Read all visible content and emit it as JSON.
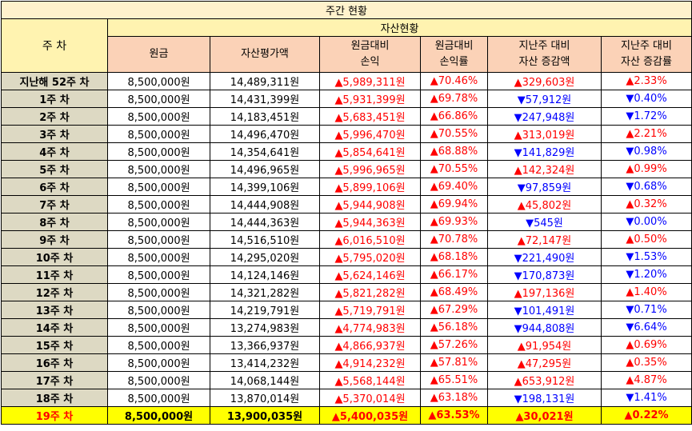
{
  "title": "주간 현황",
  "header": {
    "week_col": "주 차",
    "asset_group": "자산현황",
    "columns": [
      {
        "line1": "원금",
        "line2": ""
      },
      {
        "line1": "자산평가액",
        "line2": ""
      },
      {
        "line1": "원금대비",
        "line2": "손익"
      },
      {
        "line1": "원금대비",
        "line2": "손익률"
      },
      {
        "line1": "지난주 대비",
        "line2": "자산 증감액"
      },
      {
        "line1": "지난주 대비",
        "line2": "자산 증감률"
      }
    ]
  },
  "colors": {
    "up": "#ff0000",
    "down": "#0000ff",
    "highlight": "#ffff00"
  },
  "rows": [
    {
      "week": "지난해 52주 차",
      "principal": "8,500,000원",
      "valuation": "14,489,311원",
      "pl": "▲5,989,311원",
      "pl_rate": "▲70.46%",
      "wow_amount": "▲329,603원",
      "wow_amount_dir": "up",
      "wow_rate": "▲2.33%",
      "wow_rate_dir": "up"
    },
    {
      "week": "1주 차",
      "principal": "8,500,000원",
      "valuation": "14,431,399원",
      "pl": "▲5,931,399원",
      "pl_rate": "▲69.78%",
      "wow_amount": "▼57,912원",
      "wow_amount_dir": "down",
      "wow_rate": "▼0.40%",
      "wow_rate_dir": "down"
    },
    {
      "week": "2주 차",
      "principal": "8,500,000원",
      "valuation": "14,183,451원",
      "pl": "▲5,683,451원",
      "pl_rate": "▲66.86%",
      "wow_amount": "▼247,948원",
      "wow_amount_dir": "down",
      "wow_rate": "▼1.72%",
      "wow_rate_dir": "down"
    },
    {
      "week": "3주 차",
      "principal": "8,500,000원",
      "valuation": "14,496,470원",
      "pl": "▲5,996,470원",
      "pl_rate": "▲70.55%",
      "wow_amount": "▲313,019원",
      "wow_amount_dir": "up",
      "wow_rate": "▲2.21%",
      "wow_rate_dir": "up"
    },
    {
      "week": "4주 차",
      "principal": "8,500,000원",
      "valuation": "14,354,641원",
      "pl": "▲5,854,641원",
      "pl_rate": "▲68.88%",
      "wow_amount": "▼141,829원",
      "wow_amount_dir": "down",
      "wow_rate": "▼0.98%",
      "wow_rate_dir": "down"
    },
    {
      "week": "5주 차",
      "principal": "8,500,000원",
      "valuation": "14,496,965원",
      "pl": "▲5,996,965원",
      "pl_rate": "▲70.55%",
      "wow_amount": "▲142,324원",
      "wow_amount_dir": "up",
      "wow_rate": "▲0.99%",
      "wow_rate_dir": "up"
    },
    {
      "week": "6주 차",
      "principal": "8,500,000원",
      "valuation": "14,399,106원",
      "pl": "▲5,899,106원",
      "pl_rate": "▲69.40%",
      "wow_amount": "▼97,859원",
      "wow_amount_dir": "down",
      "wow_rate": "▼0.68%",
      "wow_rate_dir": "down"
    },
    {
      "week": "7주 차",
      "principal": "8,500,000원",
      "valuation": "14,444,908원",
      "pl": "▲5,944,908원",
      "pl_rate": "▲69.94%",
      "wow_amount": "▲45,802원",
      "wow_amount_dir": "up",
      "wow_rate": "▲0.32%",
      "wow_rate_dir": "up"
    },
    {
      "week": "8주 차",
      "principal": "8,500,000원",
      "valuation": "14,444,363원",
      "pl": "▲5,944,363원",
      "pl_rate": "▲69.93%",
      "wow_amount": "▼545원",
      "wow_amount_dir": "down",
      "wow_rate": "▼0.00%",
      "wow_rate_dir": "down"
    },
    {
      "week": "9주 차",
      "principal": "8,500,000원",
      "valuation": "14,516,510원",
      "pl": "▲6,016,510원",
      "pl_rate": "▲70.78%",
      "wow_amount": "▲72,147원",
      "wow_amount_dir": "up",
      "wow_rate": "▲0.50%",
      "wow_rate_dir": "up"
    },
    {
      "week": "10주 차",
      "principal": "8,500,000원",
      "valuation": "14,295,020원",
      "pl": "▲5,795,020원",
      "pl_rate": "▲68.18%",
      "wow_amount": "▼221,490원",
      "wow_amount_dir": "down",
      "wow_rate": "▼1.53%",
      "wow_rate_dir": "down"
    },
    {
      "week": "11주 차",
      "principal": "8,500,000원",
      "valuation": "14,124,146원",
      "pl": "▲5,624,146원",
      "pl_rate": "▲66.17%",
      "wow_amount": "▼170,873원",
      "wow_amount_dir": "down",
      "wow_rate": "▼1.20%",
      "wow_rate_dir": "down"
    },
    {
      "week": "12주 차",
      "principal": "8,500,000원",
      "valuation": "14,321,282원",
      "pl": "▲5,821,282원",
      "pl_rate": "▲68.49%",
      "wow_amount": "▲197,136원",
      "wow_amount_dir": "up",
      "wow_rate": "▲1.40%",
      "wow_rate_dir": "up"
    },
    {
      "week": "13주 차",
      "principal": "8,500,000원",
      "valuation": "14,219,791원",
      "pl": "▲5,719,791원",
      "pl_rate": "▲67.29%",
      "wow_amount": "▼101,491원",
      "wow_amount_dir": "down",
      "wow_rate": "▼0.71%",
      "wow_rate_dir": "down"
    },
    {
      "week": "14주 차",
      "principal": "8,500,000원",
      "valuation": "13,274,983원",
      "pl": "▲4,774,983원",
      "pl_rate": "▲56.18%",
      "wow_amount": "▼944,808원",
      "wow_amount_dir": "down",
      "wow_rate": "▼6.64%",
      "wow_rate_dir": "down"
    },
    {
      "week": "15주 차",
      "principal": "8,500,000원",
      "valuation": "13,366,937원",
      "pl": "▲4,866,937원",
      "pl_rate": "▲57.26%",
      "wow_amount": "▲91,954원",
      "wow_amount_dir": "up",
      "wow_rate": "▲0.69%",
      "wow_rate_dir": "up"
    },
    {
      "week": "16주 차",
      "principal": "8,500,000원",
      "valuation": "13,414,232원",
      "pl": "▲4,914,232원",
      "pl_rate": "▲57.81%",
      "wow_amount": "▲47,295원",
      "wow_amount_dir": "up",
      "wow_rate": "▲0.35%",
      "wow_rate_dir": "up"
    },
    {
      "week": "17주 차",
      "principal": "8,500,000원",
      "valuation": "14,068,144원",
      "pl": "▲5,568,144원",
      "pl_rate": "▲65.51%",
      "wow_amount": "▲653,912원",
      "wow_amount_dir": "up",
      "wow_rate": "▲4.87%",
      "wow_rate_dir": "up"
    },
    {
      "week": "18주 차",
      "principal": "8,500,000원",
      "valuation": "13,870,014원",
      "pl": "▲5,370,014원",
      "pl_rate": "▲63.18%",
      "wow_amount": "▼198,131원",
      "wow_amount_dir": "down",
      "wow_rate": "▼1.41%",
      "wow_rate_dir": "down"
    },
    {
      "week": "19주 차",
      "principal": "8,500,000원",
      "valuation": "13,900,035원",
      "pl": "▲5,400,035원",
      "pl_rate": "▲63.53%",
      "wow_amount": "▲30,021원",
      "wow_amount_dir": "up",
      "wow_rate": "▲0.22%",
      "wow_rate_dir": "up",
      "highlight": true
    }
  ]
}
